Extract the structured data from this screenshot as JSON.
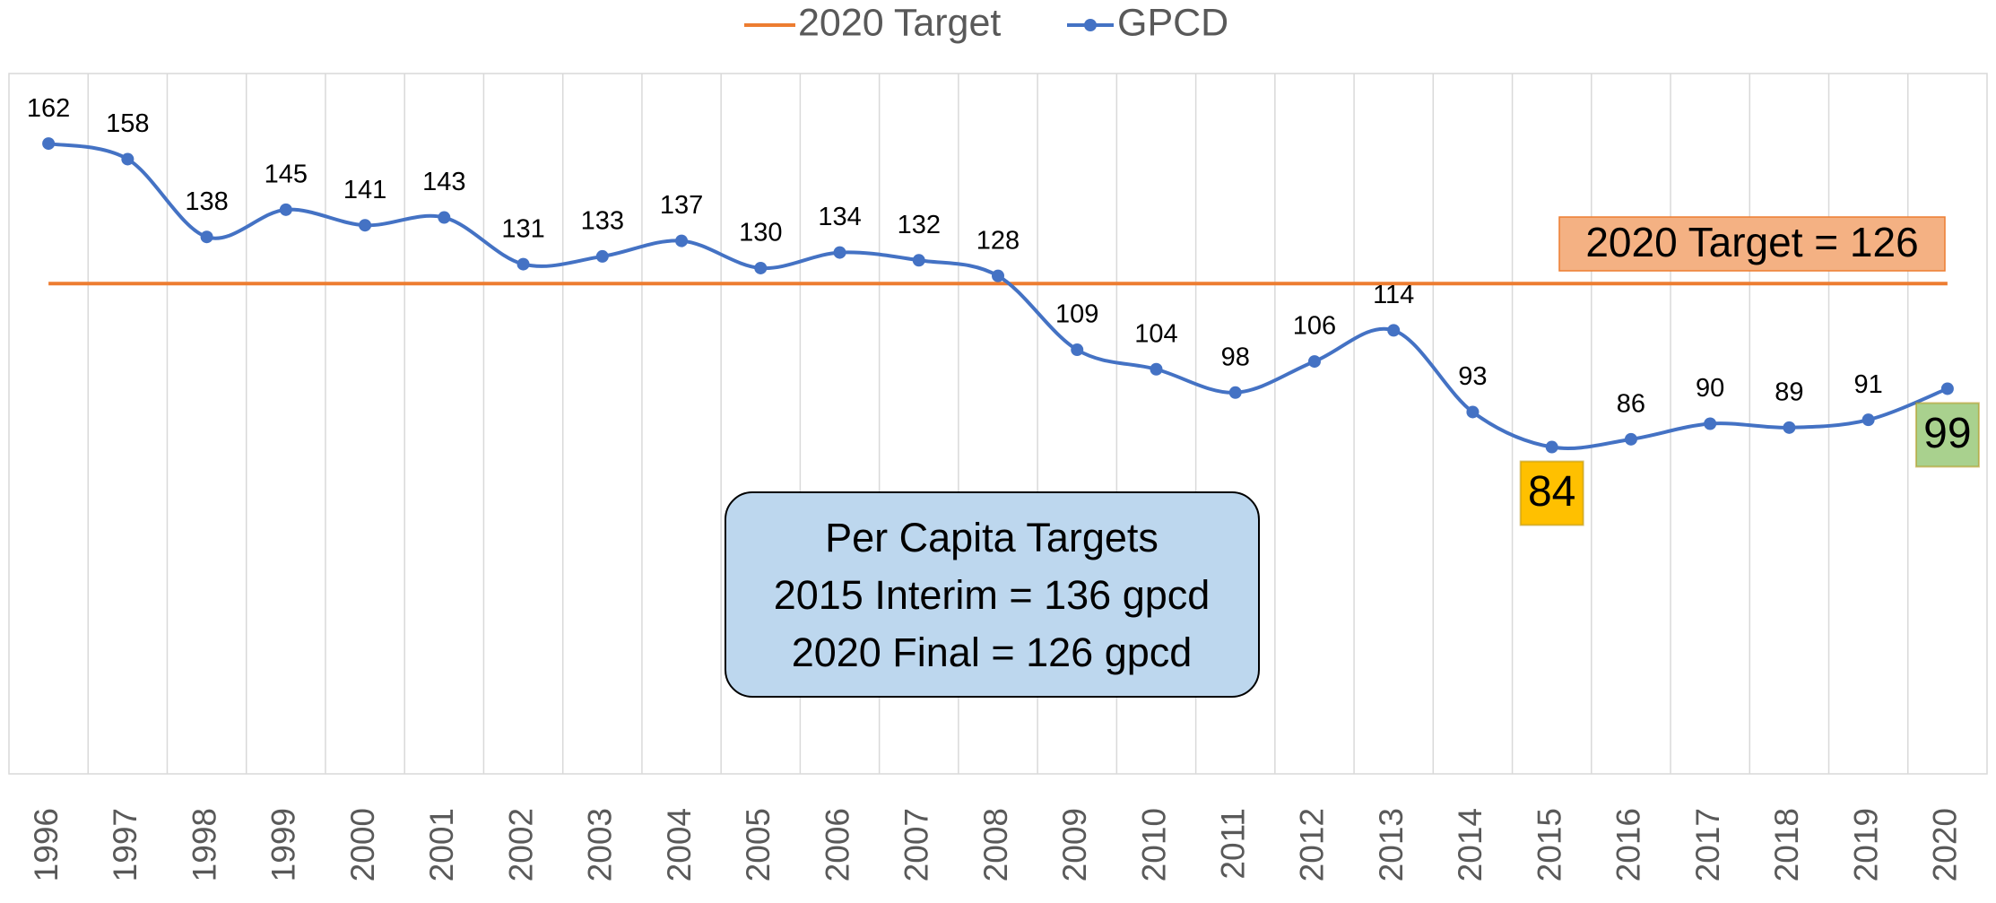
{
  "chart_data": {
    "type": "line",
    "categories": [
      "1996",
      "1997",
      "1998",
      "1999",
      "2000",
      "2001",
      "2002",
      "2003",
      "2004",
      "2005",
      "2006",
      "2007",
      "2008",
      "2009",
      "2010",
      "2011",
      "2012",
      "2013",
      "2014",
      "2015",
      "2016",
      "2017",
      "2018",
      "2019",
      "2020"
    ],
    "series": [
      {
        "name": "2020 Target",
        "color": "#ed7d31",
        "values": [
          126,
          126,
          126,
          126,
          126,
          126,
          126,
          126,
          126,
          126,
          126,
          126,
          126,
          126,
          126,
          126,
          126,
          126,
          126,
          126,
          126,
          126,
          126,
          126,
          126
        ]
      },
      {
        "name": "GPCD",
        "color": "#4472c4",
        "values": [
          162,
          158,
          138,
          145,
          141,
          143,
          131,
          133,
          137,
          130,
          134,
          132,
          128,
          109,
          104,
          98,
          106,
          114,
          93,
          84,
          86,
          90,
          89,
          91,
          99
        ]
      }
    ],
    "ylim": [
      0,
      180
    ],
    "grid": true,
    "legend": "top",
    "highlights": [
      {
        "index": 19,
        "color": "#ffc000"
      },
      {
        "index": 24,
        "color": "#a9d18e"
      }
    ],
    "annotation": "2020 Target = 126",
    "text_box": [
      "Per Capita Targets",
      "2015 Interim = 136 gpcd",
      "2020 Final = 126 gpcd"
    ]
  }
}
